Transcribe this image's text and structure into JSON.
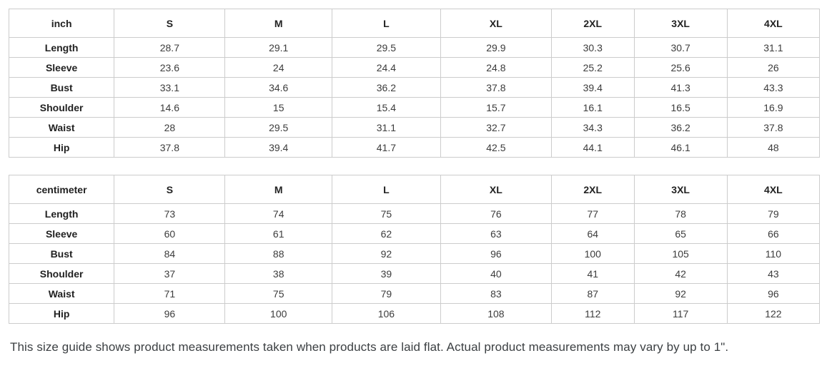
{
  "tables": [
    {
      "unit_label": "inch",
      "size_headers": [
        "S",
        "M",
        "L",
        "XL",
        "2XL",
        "3XL",
        "4XL"
      ],
      "rows": [
        {
          "label": "Length",
          "values": [
            "28.7",
            "29.1",
            "29.5",
            "29.9",
            "30.3",
            "30.7",
            "31.1"
          ]
        },
        {
          "label": "Sleeve",
          "values": [
            "23.6",
            "24",
            "24.4",
            "24.8",
            "25.2",
            "25.6",
            "26"
          ]
        },
        {
          "label": "Bust",
          "values": [
            "33.1",
            "34.6",
            "36.2",
            "37.8",
            "39.4",
            "41.3",
            "43.3"
          ]
        },
        {
          "label": "Shoulder",
          "values": [
            "14.6",
            "15",
            "15.4",
            "15.7",
            "16.1",
            "16.5",
            "16.9"
          ]
        },
        {
          "label": "Waist",
          "values": [
            "28",
            "29.5",
            "31.1",
            "32.7",
            "34.3",
            "36.2",
            "37.8"
          ]
        },
        {
          "label": "Hip",
          "values": [
            "37.8",
            "39.4",
            "41.7",
            "42.5",
            "44.1",
            "46.1",
            "48"
          ]
        }
      ]
    },
    {
      "unit_label": "centimeter",
      "size_headers": [
        "S",
        "M",
        "L",
        "XL",
        "2XL",
        "3XL",
        "4XL"
      ],
      "rows": [
        {
          "label": "Length",
          "values": [
            "73",
            "74",
            "75",
            "76",
            "77",
            "78",
            "79"
          ]
        },
        {
          "label": "Sleeve",
          "values": [
            "60",
            "61",
            "62",
            "63",
            "64",
            "65",
            "66"
          ]
        },
        {
          "label": "Bust",
          "values": [
            "84",
            "88",
            "92",
            "96",
            "100",
            "105",
            "110"
          ]
        },
        {
          "label": "Shoulder",
          "values": [
            "37",
            "38",
            "39",
            "40",
            "41",
            "42",
            "43"
          ]
        },
        {
          "label": "Waist",
          "values": [
            "71",
            "75",
            "79",
            "83",
            "87",
            "92",
            "96"
          ]
        },
        {
          "label": "Hip",
          "values": [
            "96",
            "100",
            "106",
            "108",
            "112",
            "117",
            "122"
          ]
        }
      ]
    }
  ],
  "footer": {
    "note": "This size guide shows product measurements taken when products are laid flat. Actual product measurements may vary by up to 1\"."
  },
  "colors": {
    "border": "#cccccc",
    "header_text": "#222222",
    "value_text": "#3c3c3c",
    "note_text": "#3c4043"
  }
}
